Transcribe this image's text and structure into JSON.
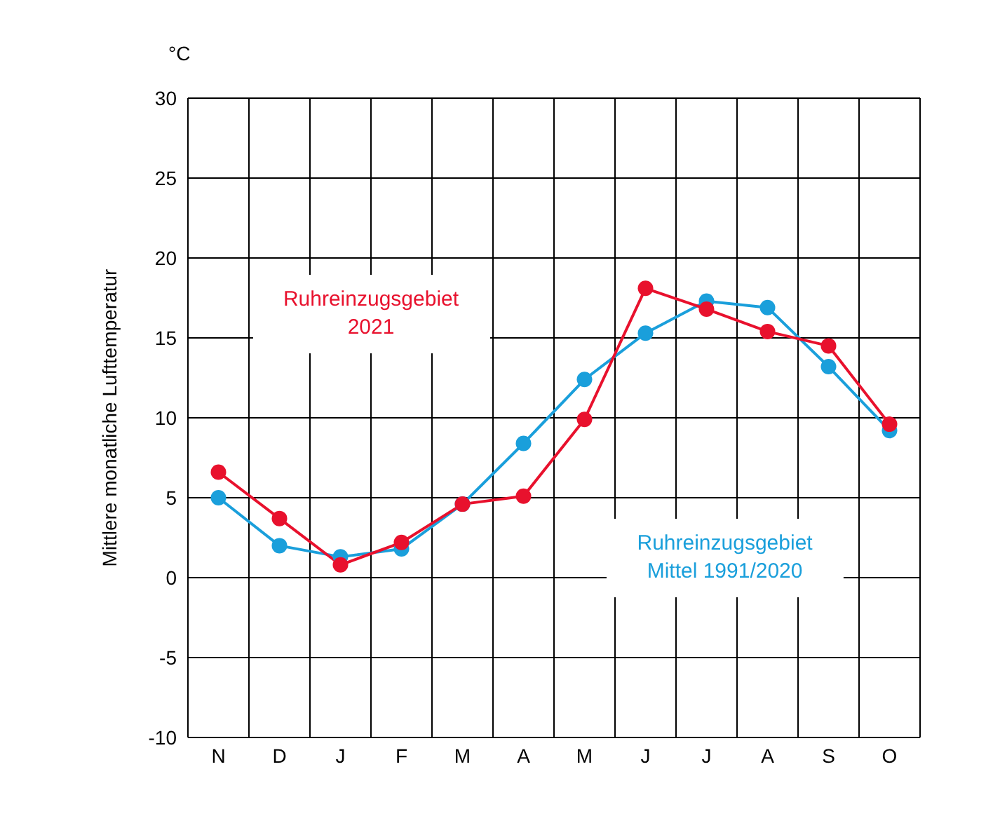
{
  "chart_data": {
    "type": "line",
    "ylabel": "Mittlere monatliche Lufttemperatur",
    "annotations": [
      "°C"
    ],
    "categories": [
      "N",
      "D",
      "J",
      "F",
      "M",
      "A",
      "M",
      "J",
      "J",
      "A",
      "S",
      "O"
    ],
    "series": [
      {
        "name": "Ruhreinzugsgebiet Mittel 1991/2020",
        "color": "#1a9fdb",
        "values": [
          5.0,
          2.0,
          1.3,
          1.8,
          4.6,
          8.4,
          12.4,
          15.3,
          17.3,
          16.9,
          13.2,
          9.2
        ]
      },
      {
        "name": "Ruhreinzugsgebiet 2021",
        "color": "#e8112d",
        "values": [
          6.6,
          3.7,
          0.8,
          2.2,
          4.6,
          5.1,
          9.9,
          18.1,
          16.8,
          15.4,
          14.5,
          9.6
        ]
      }
    ],
    "ylim": [
      -10,
      30
    ],
    "yticks": [
      -10,
      -5,
      0,
      5,
      10,
      15,
      20,
      25,
      30
    ],
    "grid": true,
    "marker": "circle",
    "line_style": "solid"
  }
}
